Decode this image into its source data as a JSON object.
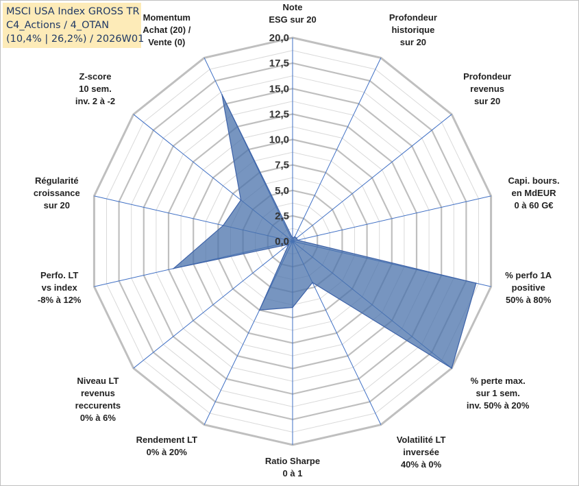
{
  "title": {
    "lines": [
      "MSCI USA Index GROSS TR",
      "C4_Actions / 4_OTAN",
      "(10,4% | 26,2%) / 2026W01"
    ]
  },
  "chart_data": {
    "type": "radar",
    "rmin": 0,
    "rmax": 20,
    "ticks": [
      "0,0",
      "2,5",
      "5,0",
      "7,5",
      "10,0",
      "12,5",
      "15,0",
      "17,5",
      "20,0"
    ],
    "axes": [
      {
        "label": [
          "Note",
          "ESG sur 20"
        ],
        "value": 0.3
      },
      {
        "label": [
          "Profondeur",
          "historique",
          "sur 20"
        ],
        "value": 0.5
      },
      {
        "label": [
          "Profondeur",
          "revenus",
          "sur 20"
        ],
        "value": 0.5
      },
      {
        "label": [
          "Capi. bours.",
          "en MdEUR",
          "0 à 60 G€"
        ],
        "value": 0.5
      },
      {
        "label": [
          "% perfo 1A",
          "positive",
          "50% à 80%"
        ],
        "value": 18.5
      },
      {
        "label": [
          "% perte max.",
          "sur 1 sem.",
          "inv. 50% à 20%"
        ],
        "value": 20.0
      },
      {
        "label": [
          "Volatilité LT",
          "inversée",
          "40% à 0%"
        ],
        "value": 4.5
      },
      {
        "label": [
          "Ratio Sharpe",
          "0 à 1"
        ],
        "value": 6.5
      },
      {
        "label": [
          "Rendement LT",
          "0% à 20%"
        ],
        "value": 7.5
      },
      {
        "label": [
          "Niveau LT",
          "revenus",
          "reccurents",
          "0% à 6%"
        ],
        "value": 0.5
      },
      {
        "label": [
          "Perfo. LT",
          "vs index",
          "-8% à 12%"
        ],
        "value": 12.0
      },
      {
        "label": [
          "Régularité",
          "croissance",
          "sur 20"
        ],
        "value": 7.0
      },
      {
        "label": [
          "Z-score",
          "10 sem.",
          "inv. 2 à -2"
        ],
        "value": 6.5
      },
      {
        "label": [
          "Momentum",
          "Achat (20) /",
          "Vente (0)"
        ],
        "value": 16.0
      }
    ],
    "grid": true,
    "legend": "none"
  },
  "colors": {
    "fill": "#4a72ab",
    "fill_opacity": 0.75,
    "stroke": "#3d62a8",
    "grid_major": "#bfbfbf",
    "grid_minor": "#d9d9d9",
    "spoke": "#3f6fc4",
    "title_bg": "#fdebb8",
    "title_text": "#1f3864"
  }
}
